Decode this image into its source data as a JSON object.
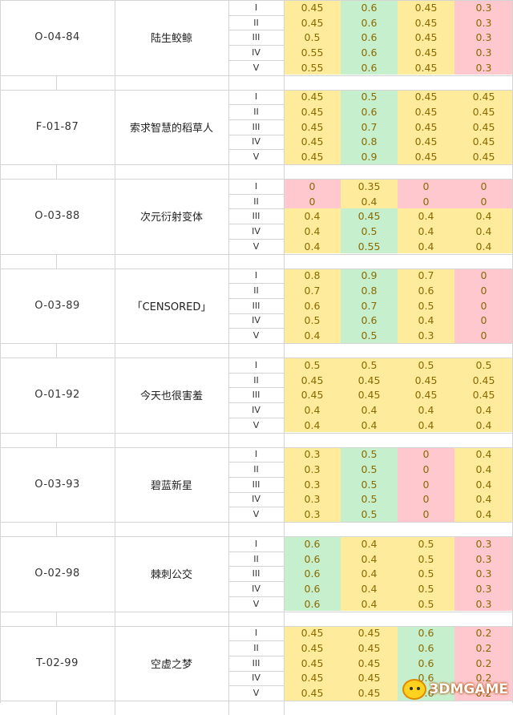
{
  "level_labels": [
    "I",
    "II",
    "III",
    "IV",
    "V"
  ],
  "colors": {
    "yellow": "#ffeb9c",
    "green": "#c6efce",
    "red": "#ffc7ce",
    "white": "#ffffff",
    "grid": "#d4d4d4"
  },
  "entries": [
    {
      "id": "O-04-84",
      "name": "陆生鲛鲸",
      "values": [
        [
          "0.45",
          "0.6",
          "0.45",
          "0.3"
        ],
        [
          "0.45",
          "0.6",
          "0.45",
          "0.3"
        ],
        [
          "0.5",
          "0.6",
          "0.45",
          "0.3"
        ],
        [
          "0.55",
          "0.6",
          "0.45",
          "0.3"
        ],
        [
          "0.55",
          "0.6",
          "0.45",
          "0.3"
        ]
      ],
      "colors": [
        [
          "y",
          "g",
          "y",
          "r"
        ],
        [
          "y",
          "g",
          "y",
          "r"
        ],
        [
          "y",
          "g",
          "y",
          "r"
        ],
        [
          "y",
          "g",
          "y",
          "r"
        ],
        [
          "y",
          "g",
          "y",
          "r"
        ]
      ]
    },
    {
      "id": "F-01-87",
      "name": "索求智慧的稻草人",
      "values": [
        [
          "0.45",
          "0.5",
          "0.45",
          "0.45"
        ],
        [
          "0.45",
          "0.6",
          "0.45",
          "0.45"
        ],
        [
          "0.45",
          "0.7",
          "0.45",
          "0.45"
        ],
        [
          "0.45",
          "0.8",
          "0.45",
          "0.45"
        ],
        [
          "0.45",
          "0.9",
          "0.45",
          "0.45"
        ]
      ],
      "colors": [
        [
          "y",
          "g",
          "y",
          "y"
        ],
        [
          "y",
          "g",
          "y",
          "y"
        ],
        [
          "y",
          "g",
          "y",
          "y"
        ],
        [
          "y",
          "g",
          "y",
          "y"
        ],
        [
          "y",
          "g",
          "y",
          "y"
        ]
      ]
    },
    {
      "id": "O-03-88",
      "name": "次元衍射变体",
      "values": [
        [
          "0",
          "0.35",
          "0",
          "0"
        ],
        [
          "0",
          "0.4",
          "0",
          "0"
        ],
        [
          "0.4",
          "0.45",
          "0.4",
          "0.4"
        ],
        [
          "0.4",
          "0.5",
          "0.4",
          "0.4"
        ],
        [
          "0.4",
          "0.55",
          "0.4",
          "0.4"
        ]
      ],
      "colors": [
        [
          "r",
          "y",
          "r",
          "r"
        ],
        [
          "r",
          "y",
          "r",
          "r"
        ],
        [
          "y",
          "g",
          "y",
          "y"
        ],
        [
          "y",
          "g",
          "y",
          "y"
        ],
        [
          "y",
          "g",
          "y",
          "y"
        ]
      ]
    },
    {
      "id": "O-03-89",
      "name": "「CENSORED」",
      "values": [
        [
          "0.8",
          "0.9",
          "0.7",
          "0"
        ],
        [
          "0.7",
          "0.8",
          "0.6",
          "0"
        ],
        [
          "0.6",
          "0.7",
          "0.5",
          "0"
        ],
        [
          "0.5",
          "0.6",
          "0.4",
          "0"
        ],
        [
          "0.4",
          "0.5",
          "0.3",
          "0"
        ]
      ],
      "colors": [
        [
          "y",
          "g",
          "y",
          "r"
        ],
        [
          "y",
          "g",
          "y",
          "r"
        ],
        [
          "y",
          "g",
          "y",
          "r"
        ],
        [
          "y",
          "g",
          "y",
          "r"
        ],
        [
          "y",
          "g",
          "y",
          "r"
        ]
      ]
    },
    {
      "id": "O-01-92",
      "name": "今天也很害羞",
      "values": [
        [
          "0.5",
          "0.5",
          "0.5",
          "0.5"
        ],
        [
          "0.45",
          "0.45",
          "0.45",
          "0.45"
        ],
        [
          "0.45",
          "0.45",
          "0.45",
          "0.45"
        ],
        [
          "0.4",
          "0.4",
          "0.4",
          "0.4"
        ],
        [
          "0.4",
          "0.4",
          "0.4",
          "0.4"
        ]
      ],
      "colors": [
        [
          "y",
          "y",
          "y",
          "y"
        ],
        [
          "y",
          "y",
          "y",
          "y"
        ],
        [
          "y",
          "y",
          "y",
          "y"
        ],
        [
          "y",
          "y",
          "y",
          "y"
        ],
        [
          "y",
          "y",
          "y",
          "y"
        ]
      ]
    },
    {
      "id": "O-03-93",
      "name": "碧蓝新星",
      "values": [
        [
          "0.3",
          "0.5",
          "0",
          "0.4"
        ],
        [
          "0.3",
          "0.5",
          "0",
          "0.4"
        ],
        [
          "0.3",
          "0.5",
          "0",
          "0.4"
        ],
        [
          "0.3",
          "0.5",
          "0",
          "0.4"
        ],
        [
          "0.3",
          "0.5",
          "0",
          "0.4"
        ]
      ],
      "colors": [
        [
          "y",
          "g",
          "r",
          "y"
        ],
        [
          "y",
          "g",
          "r",
          "y"
        ],
        [
          "y",
          "g",
          "r",
          "y"
        ],
        [
          "y",
          "g",
          "r",
          "y"
        ],
        [
          "y",
          "g",
          "r",
          "y"
        ]
      ]
    },
    {
      "id": "O-02-98",
      "name": "棘刺公交",
      "values": [
        [
          "0.6",
          "0.4",
          "0.5",
          "0.3"
        ],
        [
          "0.6",
          "0.4",
          "0.5",
          "0.3"
        ],
        [
          "0.6",
          "0.4",
          "0.5",
          "0.3"
        ],
        [
          "0.6",
          "0.4",
          "0.5",
          "0.3"
        ],
        [
          "0.6",
          "0.4",
          "0.5",
          "0.3"
        ]
      ],
      "colors": [
        [
          "g",
          "y",
          "y",
          "r"
        ],
        [
          "g",
          "y",
          "y",
          "r"
        ],
        [
          "g",
          "y",
          "y",
          "r"
        ],
        [
          "g",
          "y",
          "y",
          "r"
        ],
        [
          "g",
          "y",
          "y",
          "r"
        ]
      ]
    },
    {
      "id": "T-02-99",
      "name": "空虚之梦",
      "values": [
        [
          "0.45",
          "0.45",
          "0.6",
          "0.2"
        ],
        [
          "0.45",
          "0.45",
          "0.6",
          "0.2"
        ],
        [
          "0.45",
          "0.45",
          "0.6",
          "0.2"
        ],
        [
          "0.45",
          "0.45",
          "0.6",
          "0.2"
        ],
        [
          "0.45",
          "0.45",
          "0.6",
          "0.2"
        ]
      ],
      "colors": [
        [
          "y",
          "y",
          "g",
          "r"
        ],
        [
          "y",
          "y",
          "g",
          "r"
        ],
        [
          "y",
          "y",
          "g",
          "r"
        ],
        [
          "y",
          "y",
          "g",
          "r"
        ],
        [
          "y",
          "y",
          "g",
          "r"
        ]
      ]
    }
  ],
  "watermark": {
    "text": "3DMGAME",
    "icon": "mascot-face-icon"
  }
}
